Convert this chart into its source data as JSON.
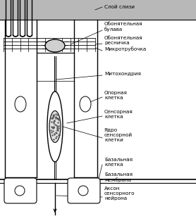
{
  "background_color": "#ffffff",
  "labels": {
    "sloy_slizi": "Слой слизи",
    "obonyatelnaya_bulava": "Обонятельная\nбулава",
    "obonyatelnaya_resniczka": "Обонятельная\nресничка",
    "mikrotrubochka": "Микротрубочка",
    "mitokhondriya": "Митохондрия",
    "opornaya_kletka": "Опорная\nклетка",
    "sensornaya_kletka": "Сенсорная\nклетка",
    "yadro_sensornoy_kletki": "Ядро\nсенсорной\nклетки",
    "bazalnaya_kletka": "Базальная\nклетка",
    "bazalnaya_membrana": "Базальная\nмембрана",
    "akson_sensornogo_neyrona": "Аксон\nсенсорного\nнейрона"
  },
  "fig_width": 2.78,
  "fig_height": 3.07,
  "dpi": 100
}
